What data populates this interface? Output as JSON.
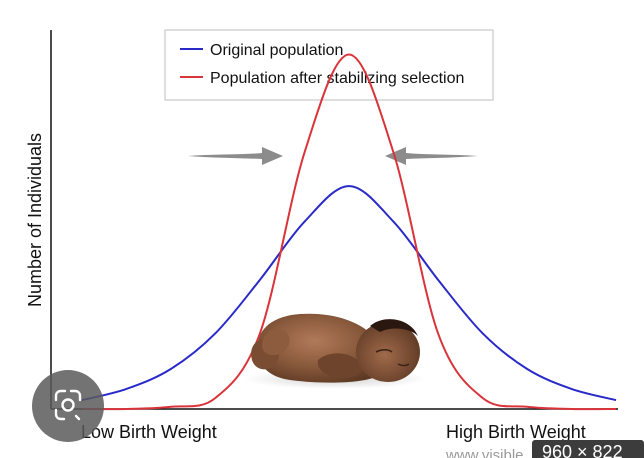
{
  "chart_data": {
    "type": "line",
    "title": "",
    "xlabel": "",
    "ylabel": "Number of Individuals",
    "x_tick_labels": [
      "Low Birth Weight",
      "High Birth Weight"
    ],
    "legend": {
      "placement": "top-center",
      "entries": [
        "Original population",
        "Population after stabilizing selection"
      ]
    },
    "x": [
      -3,
      -2.5,
      -2,
      -1.5,
      -1,
      -0.5,
      0,
      0.5,
      1,
      1.5,
      2,
      2.5,
      3
    ],
    "series": [
      {
        "name": "Original population",
        "color": "#2a2ac8",
        "values": [
          0.04,
          0.09,
          0.18,
          0.34,
          0.58,
          0.84,
          1.0,
          0.84,
          0.58,
          0.34,
          0.18,
          0.09,
          0.04
        ]
      },
      {
        "name": "Population after stabilizing selection",
        "color": "#d9343a",
        "values": [
          0.0,
          0.0,
          0.01,
          0.05,
          0.34,
          1.15,
          1.59,
          1.15,
          0.34,
          0.05,
          0.01,
          0.0,
          0.0
        ]
      }
    ],
    "ylim": [
      0,
      1.7
    ],
    "grid": false,
    "arrows": "two gray arrows pointing inward toward the center",
    "illustration": "sleeping-newborn-baby"
  },
  "watermark": {
    "site_text": "www.visible",
    "dimensions_badge": "960 × 822"
  },
  "icons": {
    "lens_button": "image-search-icon"
  }
}
